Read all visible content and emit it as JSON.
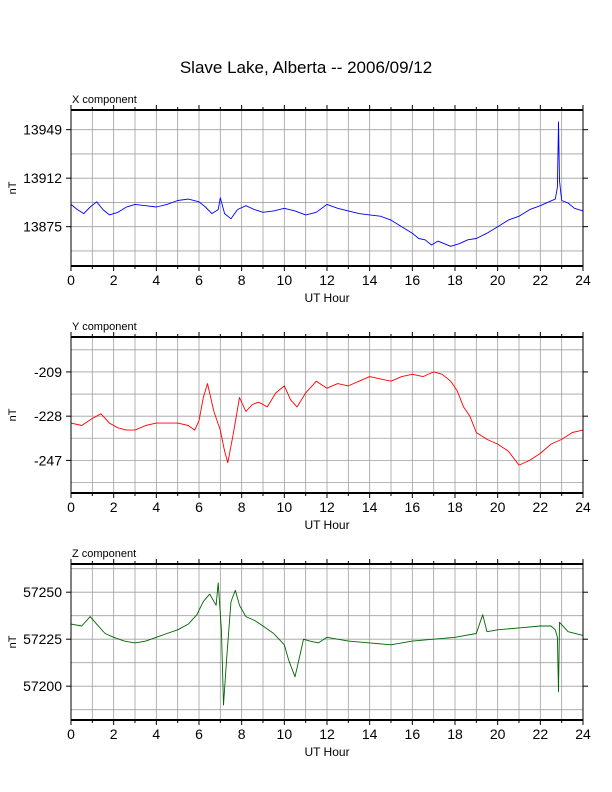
{
  "title": "Slave Lake, Alberta -- 2006/09/12",
  "chart_data": [
    {
      "type": "line",
      "panel_label": "X component",
      "xlabel": "UT Hour",
      "ylabel": "nT",
      "xlim": [
        0,
        24
      ],
      "xticks": [
        0,
        2,
        4,
        6,
        8,
        10,
        12,
        14,
        16,
        18,
        20,
        22,
        24
      ],
      "ylim": [
        13845,
        13964
      ],
      "yticks": [
        13875,
        13912,
        13949
      ],
      "grid": true,
      "color": "#0000ff",
      "series": [
        {
          "x": [
            0,
            0.3,
            0.6,
            0.9,
            1.2,
            1.5,
            1.8,
            2.2,
            2.6,
            3,
            3.5,
            4,
            4.5,
            5,
            5.5,
            6,
            6.3,
            6.6,
            6.9,
            7.0,
            7.2,
            7.5,
            7.8,
            8.2,
            8.6,
            9,
            9.5,
            10,
            10.5,
            11,
            11.5,
            12,
            12.5,
            13,
            13.5,
            14,
            14.5,
            15,
            15.5,
            16,
            16.3,
            16.6,
            16.9,
            17.2,
            17.5,
            17.8,
            18.2,
            18.6,
            19,
            19.5,
            20,
            20.5,
            21,
            21.5,
            22,
            22.4,
            22.7,
            22.8,
            22.85,
            22.9,
            23.0,
            23.3,
            23.6,
            24
          ],
          "y": [
            13892,
            13888,
            13885,
            13890,
            13894,
            13888,
            13884,
            13886,
            13890,
            13892,
            13891,
            13890,
            13892,
            13895,
            13896,
            13894,
            13890,
            13885,
            13888,
            13897,
            13885,
            13881,
            13888,
            13891,
            13888,
            13886,
            13887,
            13889,
            13887,
            13884,
            13886,
            13892,
            13889,
            13887,
            13885,
            13884,
            13883,
            13880,
            13875,
            13870,
            13866,
            13865,
            13861,
            13864,
            13862,
            13860,
            13862,
            13865,
            13866,
            13870,
            13875,
            13880,
            13883,
            13888,
            13891,
            13894,
            13896,
            13905,
            13955,
            13910,
            13895,
            13893,
            13889,
            13887
          ]
        }
      ]
    },
    {
      "type": "line",
      "panel_label": "Y component",
      "xlabel": "UT Hour",
      "ylabel": "nT",
      "xlim": [
        0,
        24
      ],
      "xticks": [
        0,
        2,
        4,
        6,
        8,
        10,
        12,
        14,
        16,
        18,
        20,
        22,
        24
      ],
      "ylim": [
        -261,
        -194
      ],
      "yticks": [
        -209,
        -228,
        -247
      ],
      "grid": true,
      "color": "#ff0000",
      "series": [
        {
          "x": [
            0,
            0.5,
            1.0,
            1.4,
            1.8,
            2.2,
            2.6,
            3.0,
            3.5,
            4,
            4.5,
            5,
            5.5,
            5.8,
            6.0,
            6.2,
            6.4,
            6.7,
            7.0,
            7.2,
            7.35,
            7.6,
            7.9,
            8.2,
            8.5,
            8.8,
            9.2,
            9.6,
            10,
            10.3,
            10.6,
            11,
            11.5,
            12,
            12.5,
            13,
            13.5,
            14,
            14.5,
            15,
            15.5,
            16,
            16.5,
            17,
            17.4,
            17.8,
            18.1,
            18.4,
            18.7,
            19,
            19.5,
            20,
            20.5,
            21,
            21.5,
            22,
            22.5,
            23,
            23.5,
            24
          ],
          "y": [
            -231,
            -232,
            -229,
            -227,
            -231,
            -233,
            -234,
            -234,
            -232,
            -231,
            -231,
            -231,
            -232,
            -234,
            -230,
            -220,
            -214,
            -226,
            -234,
            -243,
            -248,
            -236,
            -220,
            -226,
            -223,
            -222,
            -224,
            -218,
            -215,
            -221,
            -224,
            -218,
            -213,
            -216,
            -214,
            -215,
            -213,
            -211,
            -212,
            -213,
            -211,
            -210,
            -211,
            -209,
            -210,
            -213,
            -217,
            -224,
            -228,
            -235,
            -238,
            -240,
            -243,
            -249,
            -247,
            -244,
            -240,
            -238,
            -235,
            -234
          ]
        }
      ]
    },
    {
      "type": "line",
      "panel_label": "Z component",
      "xlabel": "UT Hour",
      "ylabel": "nT",
      "xlim": [
        0,
        24
      ],
      "xticks": [
        0,
        2,
        4,
        6,
        8,
        10,
        12,
        14,
        16,
        18,
        20,
        22,
        24
      ],
      "ylim": [
        57182,
        57265
      ],
      "yticks": [
        57200,
        57225,
        57250
      ],
      "grid": true,
      "color": "#006400",
      "series": [
        {
          "x": [
            0,
            0.5,
            0.9,
            1.2,
            1.6,
            2,
            2.5,
            3,
            3.5,
            4,
            4.5,
            5,
            5.5,
            5.9,
            6.2,
            6.5,
            6.8,
            6.9,
            7.05,
            7.15,
            7.3,
            7.5,
            7.7,
            7.9,
            8.2,
            8.6,
            9,
            9.5,
            10,
            10.2,
            10.5,
            10.7,
            10.9,
            11.2,
            11.6,
            12,
            12.5,
            13,
            14,
            15,
            16,
            17,
            18,
            19,
            19.3,
            19.5,
            20,
            21,
            22,
            22.5,
            22.7,
            22.8,
            22.85,
            22.9,
            23.3,
            24
          ],
          "y": [
            57233,
            57232,
            57237,
            57233,
            57228,
            57226,
            57224,
            57223,
            57224,
            57226,
            57228,
            57230,
            57233,
            57238,
            57245,
            57249,
            57243,
            57255,
            57230,
            57190,
            57215,
            57245,
            57251,
            57243,
            57237,
            57235,
            57232,
            57228,
            57222,
            57214,
            57205,
            57215,
            57225,
            57224,
            57223,
            57226,
            57225,
            57224,
            57223,
            57222,
            57224,
            57225,
            57226,
            57228,
            57238,
            57229,
            57230,
            57231,
            57232,
            57232,
            57230,
            57226,
            57197,
            57234,
            57229,
            57227
          ]
        }
      ]
    }
  ]
}
